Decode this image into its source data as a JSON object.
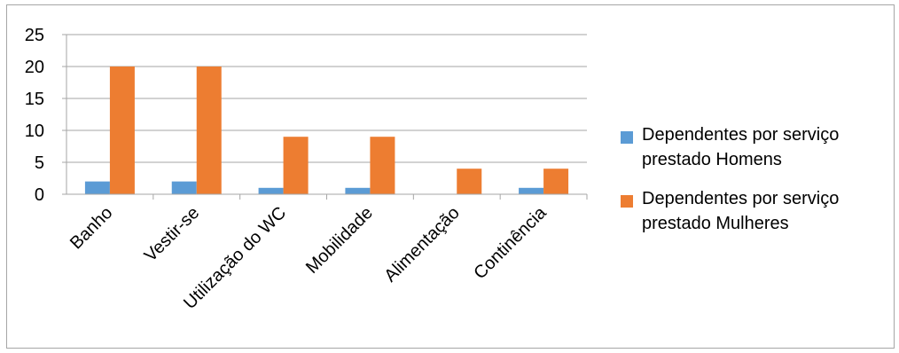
{
  "chart_data": {
    "type": "bar",
    "categories": [
      "Banho",
      "Vestir-se",
      "Utilização do WC",
      "Mobilidade",
      "Alimentação",
      "Continência"
    ],
    "series": [
      {
        "name": "Dependentes por serviço prestado Homens",
        "values": [
          2,
          2,
          1,
          1,
          0,
          1
        ],
        "color": "#5b9bd5"
      },
      {
        "name": "Dependentes por serviço prestado Mulheres",
        "values": [
          20,
          20,
          9,
          9,
          4,
          4
        ],
        "color": "#ed7d31"
      }
    ],
    "yticks": [
      "0",
      "5",
      "10",
      "15",
      "20",
      "25"
    ],
    "ylim": [
      0,
      25
    ],
    "grid": true,
    "legend_position": "right",
    "title": "",
    "xlabel": "",
    "ylabel": ""
  }
}
